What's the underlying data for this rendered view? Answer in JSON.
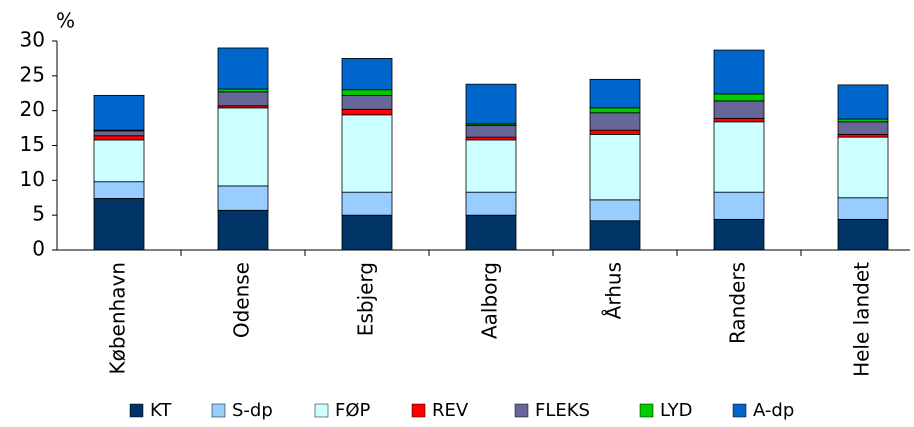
{
  "chart_data": {
    "type": "stacked_bar",
    "ylabel": "%",
    "categories": [
      "København",
      "Odense",
      "Esbjerg",
      "Aalborg",
      "Århus",
      "Randers",
      "Hele landet"
    ],
    "series": [
      {
        "name": "KT",
        "color": "#003366",
        "values": [
          7.4,
          5.7,
          5.0,
          5.0,
          4.2,
          4.4,
          4.4
        ]
      },
      {
        "name": "S-dp",
        "color": "#99ccff",
        "values": [
          2.4,
          3.5,
          3.3,
          3.3,
          3.0,
          3.9,
          3.1
        ]
      },
      {
        "name": "FØP",
        "color": "#ccffff",
        "values": [
          6.0,
          11.2,
          11.1,
          7.5,
          9.4,
          10.1,
          8.7
        ]
      },
      {
        "name": "REV",
        "color": "#ff0000",
        "values": [
          0.6,
          0.3,
          0.8,
          0.4,
          0.6,
          0.5,
          0.4
        ]
      },
      {
        "name": "FLEKS",
        "color": "#666699",
        "values": [
          0.7,
          2.0,
          2.0,
          1.7,
          2.5,
          2.5,
          1.8
        ]
      },
      {
        "name": "LYD",
        "color": "#00cc00",
        "values": [
          0.1,
          0.4,
          0.8,
          0.2,
          0.7,
          1.0,
          0.4
        ]
      },
      {
        "name": "A-dp",
        "color": "#0066cc",
        "values": [
          5.0,
          5.9,
          4.5,
          5.7,
          4.1,
          6.3,
          4.9
        ]
      }
    ],
    "ylim": [
      0,
      30
    ],
    "yticks": [
      0,
      5,
      10,
      15,
      20,
      25,
      30
    ],
    "grid": false,
    "legend": "bottom"
  }
}
